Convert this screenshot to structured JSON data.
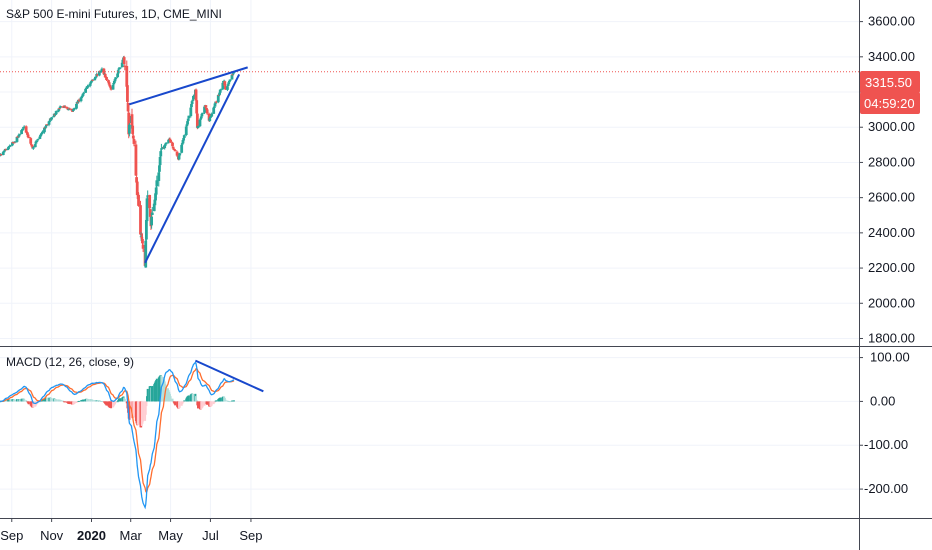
{
  "header": {
    "symbol_title": "S&P 500 E-mini Futures, 1D, CME_MINI",
    "macd_title": "MACD (12, 26, close, 9)"
  },
  "price_badges": {
    "last_price": "3315.50",
    "countdown": "04:59:20"
  },
  "colors": {
    "up": "#26a69a",
    "down": "#ef5350",
    "trend": "#1848cc",
    "macd": "#2196f3",
    "signal": "#ff6d2e",
    "price_line": "#ef5350",
    "axis_text": "#131722"
  },
  "chart_data": [
    {
      "type": "candlestick",
      "title": "S&P 500 E-mini Futures, 1D, CME_MINI",
      "y_ticks": [
        "3600.00",
        "3400.00",
        "3200.00",
        "3000.00",
        "2800.00",
        "2600.00",
        "2400.00",
        "2200.00",
        "2000.00",
        "1800.00"
      ],
      "x_ticks": [
        "Sep",
        "Nov",
        "2020",
        "Mar",
        "May",
        "Jul",
        "Sep"
      ],
      "ylim": [
        1780,
        3700
      ],
      "last_price": 3315.5,
      "anchors": [
        {
          "d": "2019-08-14",
          "p": 2840
        },
        {
          "d": "2019-09-05",
          "p": 2920
        },
        {
          "d": "2019-09-20",
          "p": 3000
        },
        {
          "d": "2019-10-03",
          "p": 2885
        },
        {
          "d": "2019-10-25",
          "p": 3020
        },
        {
          "d": "2019-11-15",
          "p": 3120
        },
        {
          "d": "2019-12-03",
          "p": 3095
        },
        {
          "d": "2019-12-27",
          "p": 3240
        },
        {
          "d": "2020-01-17",
          "p": 3330
        },
        {
          "d": "2020-01-31",
          "p": 3220
        },
        {
          "d": "2020-02-19",
          "p": 3390
        },
        {
          "d": "2020-02-24",
          "p": 3230
        },
        {
          "d": "2020-02-27",
          "p": 2980
        },
        {
          "d": "2020-03-02",
          "p": 3080
        },
        {
          "d": "2020-03-09",
          "p": 2740
        },
        {
          "d": "2020-03-16",
          "p": 2390
        },
        {
          "d": "2020-03-23",
          "p": 2230
        },
        {
          "d": "2020-03-26",
          "p": 2620
        },
        {
          "d": "2020-04-01",
          "p": 2460
        },
        {
          "d": "2020-04-17",
          "p": 2870
        },
        {
          "d": "2020-04-29",
          "p": 2930
        },
        {
          "d": "2020-05-13",
          "p": 2820
        },
        {
          "d": "2020-06-08",
          "p": 3220
        },
        {
          "d": "2020-06-11",
          "p": 3000
        },
        {
          "d": "2020-06-23",
          "p": 3130
        },
        {
          "d": "2020-06-29",
          "p": 3040
        },
        {
          "d": "2020-07-22",
          "p": 3270
        },
        {
          "d": "2020-07-24",
          "p": 3210
        },
        {
          "d": "2020-08-06",
          "p": 3320
        }
      ],
      "trendlines": [
        {
          "from": {
            "d": "2020-02-28",
            "p": 3130
          },
          "to": {
            "d": "2020-08-27",
            "p": 3340
          }
        },
        {
          "from": {
            "d": "2020-03-23",
            "p": 2230
          },
          "to": {
            "d": "2020-08-14",
            "p": 3300
          }
        }
      ]
    },
    {
      "type": "macd",
      "title": "MACD (12, 26, close, 9)",
      "params": {
        "fast": 12,
        "slow": 26,
        "source": "close",
        "signal": 9
      },
      "y_ticks": [
        "100.00",
        "0.00",
        "-100.00",
        "-200.00"
      ],
      "ylim": [
        -250,
        115
      ],
      "series": [
        {
          "name": "MACD"
        },
        {
          "name": "Signal"
        },
        {
          "name": "Histogram"
        }
      ],
      "trendlines": [
        {
          "from": {
            "d": "2020-06-08",
            "v": 93
          },
          "to": {
            "d": "2020-09-20",
            "v": 23
          }
        }
      ]
    }
  ]
}
